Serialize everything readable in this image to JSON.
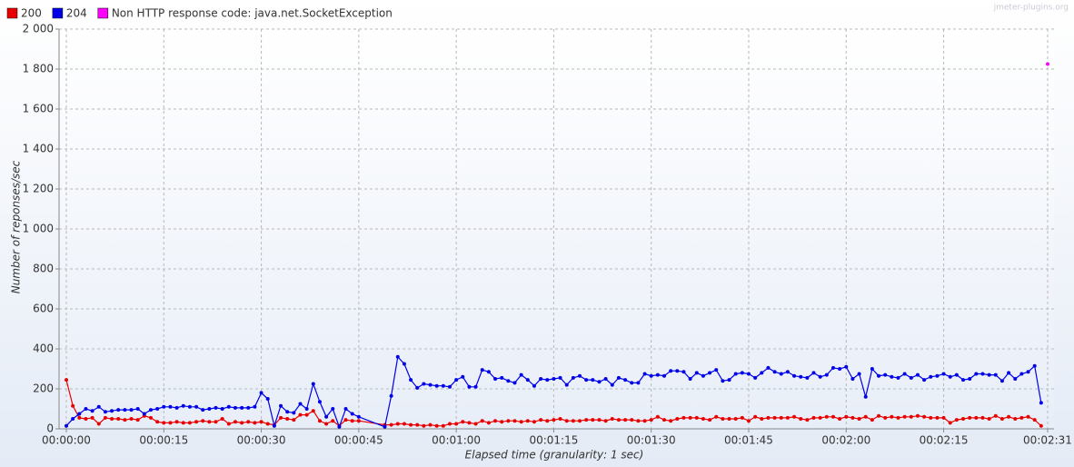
{
  "chart_data": {
    "type": "line",
    "watermark": "jmeter-plugins.org",
    "ylabel": "Number of reponses/sec",
    "xlabel": "Elapsed time (granularity: 1 sec)",
    "legend": "top",
    "grid": true,
    "xlim": [
      0,
      151
    ],
    "xticks": [
      {
        "value": 0,
        "label": "00:00:00"
      },
      {
        "value": 15,
        "label": "00:00:15"
      },
      {
        "value": 30,
        "label": "00:00:30"
      },
      {
        "value": 45,
        "label": "00:00:45"
      },
      {
        "value": 60,
        "label": "00:01:00"
      },
      {
        "value": 75,
        "label": "00:01:15"
      },
      {
        "value": 90,
        "label": "00:01:30"
      },
      {
        "value": 105,
        "label": "00:01:45"
      },
      {
        "value": 120,
        "label": "00:02:00"
      },
      {
        "value": 135,
        "label": "00:02:15"
      },
      {
        "value": 151,
        "label": "00:02:31"
      }
    ],
    "ylim": [
      0,
      2000
    ],
    "yticks": [
      0,
      200,
      400,
      600,
      800,
      {
        "value": 1000,
        "label": "1 000"
      },
      {
        "value": 1200,
        "label": "1 200"
      },
      {
        "value": 1400,
        "label": "1 400"
      },
      {
        "value": 1600,
        "label": "1 600"
      },
      {
        "value": 1800,
        "label": "1 800"
      },
      {
        "value": 2000,
        "label": "2 000"
      }
    ],
    "series": [
      {
        "name": "200",
        "color": "#e80000",
        "x": [
          0,
          1,
          2,
          3,
          4,
          5,
          6,
          7,
          8,
          9,
          10,
          11,
          12,
          13,
          14,
          15,
          16,
          17,
          18,
          19,
          20,
          21,
          22,
          23,
          24,
          25,
          26,
          27,
          28,
          29,
          30,
          31,
          32,
          33,
          34,
          35,
          36,
          37,
          38,
          39,
          40,
          41,
          42,
          43,
          44,
          45,
          49,
          50,
          51,
          52,
          53,
          54,
          55,
          56,
          57,
          58,
          59,
          60,
          61,
          62,
          63,
          64,
          65,
          66,
          67,
          68,
          69,
          70,
          71,
          72,
          73,
          74,
          75,
          76,
          77,
          78,
          79,
          80,
          81,
          82,
          83,
          84,
          85,
          86,
          87,
          88,
          89,
          90,
          91,
          92,
          93,
          94,
          95,
          96,
          97,
          98,
          99,
          100,
          101,
          102,
          103,
          104,
          105,
          106,
          107,
          108,
          109,
          110,
          111,
          112,
          113,
          114,
          115,
          116,
          117,
          118,
          119,
          120,
          121,
          122,
          123,
          124,
          125,
          126,
          127,
          128,
          129,
          130,
          131,
          132,
          133,
          134,
          135,
          136,
          137,
          138,
          139,
          140,
          141,
          142,
          143,
          144,
          145,
          146,
          147,
          148,
          149,
          150
        ],
        "values": [
          245,
          115,
          55,
          50,
          55,
          25,
          55,
          50,
          50,
          45,
          50,
          45,
          65,
          55,
          35,
          30,
          30,
          35,
          30,
          30,
          35,
          40,
          35,
          35,
          50,
          25,
          35,
          30,
          35,
          30,
          35,
          25,
          20,
          55,
          50,
          45,
          70,
          70,
          90,
          40,
          25,
          40,
          15,
          45,
          40,
          40,
          20,
          20,
          25,
          25,
          20,
          20,
          15,
          20,
          15,
          15,
          25,
          25,
          35,
          30,
          25,
          40,
          30,
          40,
          35,
          40,
          40,
          35,
          40,
          35,
          45,
          40,
          45,
          50,
          40,
          40,
          40,
          45,
          45,
          45,
          40,
          50,
          45,
          45,
          45,
          40,
          40,
          45,
          60,
          45,
          40,
          50,
          55,
          55,
          55,
          50,
          45,
          60,
          50,
          50,
          50,
          55,
          40,
          60,
          50,
          55,
          55,
          55,
          55,
          60,
          50,
          45,
          55,
          55,
          60,
          60,
          50,
          60,
          55,
          50,
          60,
          45,
          65,
          55,
          60,
          55,
          60,
          60,
          65,
          60,
          55,
          55,
          55,
          30,
          45,
          50,
          55,
          55,
          55,
          50,
          65,
          50,
          60,
          50,
          55,
          60,
          45,
          15
        ]
      },
      {
        "name": "204",
        "color": "#0000e8",
        "x": [
          0,
          1,
          2,
          3,
          4,
          5,
          6,
          7,
          8,
          9,
          10,
          11,
          12,
          13,
          14,
          15,
          16,
          17,
          18,
          19,
          20,
          21,
          22,
          23,
          24,
          25,
          26,
          27,
          28,
          29,
          30,
          31,
          32,
          33,
          34,
          35,
          36,
          37,
          38,
          39,
          40,
          41,
          42,
          43,
          44,
          45,
          49,
          50,
          51,
          52,
          53,
          54,
          55,
          56,
          57,
          58,
          59,
          60,
          61,
          62,
          63,
          64,
          65,
          66,
          67,
          68,
          69,
          70,
          71,
          72,
          73,
          74,
          75,
          76,
          77,
          78,
          79,
          80,
          81,
          82,
          83,
          84,
          85,
          86,
          87,
          88,
          89,
          90,
          91,
          92,
          93,
          94,
          95,
          96,
          97,
          98,
          99,
          100,
          101,
          102,
          103,
          104,
          105,
          106,
          107,
          108,
          109,
          110,
          111,
          112,
          113,
          114,
          115,
          116,
          117,
          118,
          119,
          120,
          121,
          122,
          123,
          124,
          125,
          126,
          127,
          128,
          129,
          130,
          131,
          132,
          133,
          134,
          135,
          136,
          137,
          138,
          139,
          140,
          141,
          142,
          143,
          144,
          145,
          146,
          147,
          148,
          149,
          150
        ],
        "values": [
          15,
          50,
          75,
          100,
          90,
          110,
          85,
          90,
          95,
          95,
          95,
          100,
          75,
          95,
          100,
          110,
          110,
          105,
          115,
          110,
          110,
          95,
          100,
          105,
          100,
          110,
          105,
          105,
          105,
          110,
          180,
          150,
          15,
          115,
          85,
          80,
          125,
          100,
          225,
          135,
          60,
          100,
          10,
          100,
          75,
          60,
          10,
          165,
          360,
          325,
          245,
          205,
          225,
          220,
          215,
          215,
          210,
          245,
          260,
          210,
          210,
          295,
          285,
          250,
          255,
          240,
          230,
          270,
          245,
          215,
          250,
          245,
          250,
          255,
          220,
          255,
          265,
          245,
          245,
          235,
          250,
          220,
          255,
          245,
          230,
          230,
          275,
          265,
          270,
          265,
          290,
          290,
          285,
          250,
          280,
          265,
          280,
          295,
          240,
          245,
          275,
          280,
          275,
          255,
          280,
          305,
          285,
          275,
          285,
          265,
          260,
          255,
          280,
          260,
          270,
          305,
          300,
          310,
          250,
          275,
          160,
          300,
          265,
          270,
          260,
          255,
          275,
          255,
          270,
          245,
          260,
          265,
          275,
          260,
          270,
          245,
          250,
          275,
          275,
          270,
          270,
          240,
          280,
          250,
          275,
          285,
          315,
          130
        ]
      },
      {
        "name": "Non HTTP response code: java.net.SocketException",
        "color": "#ff00ff",
        "x": [
          151
        ],
        "values": [
          1825
        ]
      }
    ]
  }
}
